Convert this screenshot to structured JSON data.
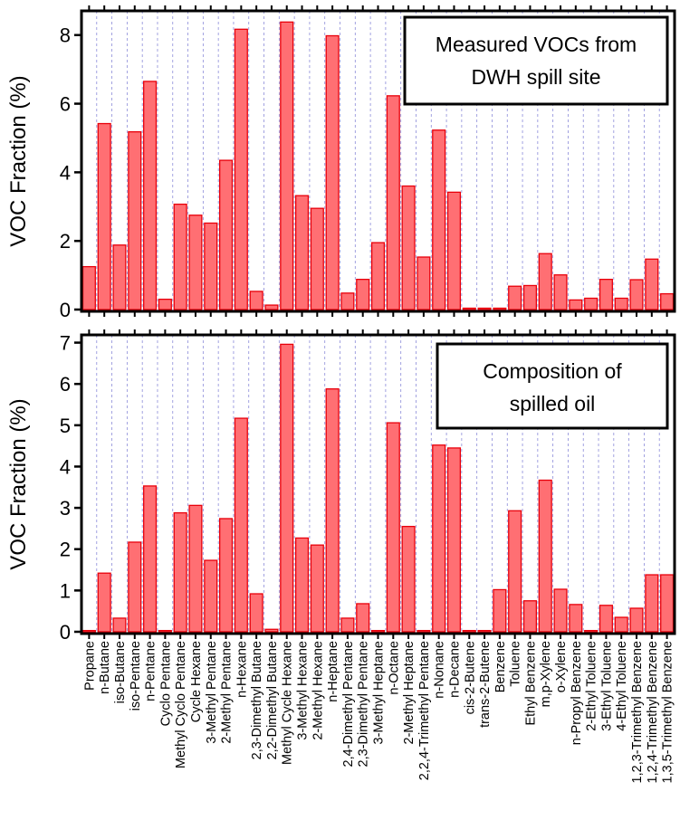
{
  "chart_data": [
    {
      "type": "bar",
      "legend_position": "top-right",
      "title": "Measured VOCs from\nDWH spill site",
      "ylabel": "VOC Fraction (%)",
      "ylim": [
        0,
        8.6
      ],
      "yticks": [
        0,
        2,
        4,
        6,
        8
      ],
      "bar_color": "#ff6f73",
      "edge_color": "#e8000b",
      "values": [
        1.25,
        5.42,
        1.88,
        5.18,
        6.65,
        0.3,
        3.07,
        2.75,
        2.52,
        4.35,
        8.17,
        0.53,
        0.13,
        8.38,
        3.32,
        2.95,
        7.98,
        0.48,
        0.88,
        1.95,
        6.23,
        3.6,
        1.53,
        5.23,
        3.42,
        0.04,
        0.04,
        0.04,
        0.68,
        0.7,
        1.63,
        1.01,
        0.28,
        0.33,
        0.88,
        0.33,
        0.87,
        1.47,
        0.46
      ]
    },
    {
      "type": "bar",
      "legend_position": "top-right",
      "title": "Composition of\nspilled oil",
      "ylabel": "VOC Fraction (%)",
      "ylim": [
        0,
        7.1
      ],
      "yticks": [
        0,
        1,
        2,
        3,
        4,
        5,
        6,
        7
      ],
      "bar_color": "#ff6f73",
      "edge_color": "#e8000b",
      "values": [
        0.03,
        1.42,
        0.33,
        2.17,
        3.53,
        0.03,
        2.88,
        3.06,
        1.73,
        2.74,
        5.17,
        0.92,
        0.06,
        6.96,
        2.27,
        2.1,
        5.88,
        0.33,
        0.68,
        0.03,
        5.06,
        2.55,
        0.03,
        4.52,
        4.45,
        0.03,
        0.03,
        1.02,
        2.93,
        0.75,
        3.67,
        1.03,
        0.66,
        0.03,
        0.64,
        0.35,
        0.57,
        1.38,
        1.38
      ]
    }
  ],
  "categories": [
    "Propane",
    "n-Butane",
    "iso-Butane",
    "iso-Pentane",
    "n-Pentane",
    "Cyclo Pentane",
    "Methyl Cyclo Pentane",
    "Cycle Hexane",
    "3-Methyl Pentane",
    "2-Methyl Pentane",
    "n-Hexane",
    "2,3-Dimethyl Butane",
    "2,2-Dimethyl Butane",
    "Methyl Cycle Hexane",
    "3-Methyl Hexane",
    "2-Methyl Hexane",
    "n-Heptane",
    "2,4-Dimethyl Pentane",
    "2,3-Dimethyl Pentane",
    "3-Methyl Heptane",
    "n-Octane",
    "2-Methyl Heptane",
    "2,2,4-Trimethyl Pentane",
    "n-Nonane",
    "n-Decane",
    "cis-2-Butene",
    "trans-2-Butene",
    "Benzene",
    "Toluene",
    "Ethyl Benzene",
    "m,p-Xylene",
    "o-Xylene",
    "n-Propyl Benzene",
    "2-Ethyl Toluene",
    "3-Ethyl Toluene",
    "4-Ethyl Toluene",
    "1,2,3-Trimethyl Benzene",
    "1,2,4-Trimethyl Benzene",
    "1,3,5-Trimethyl Benzene"
  ]
}
